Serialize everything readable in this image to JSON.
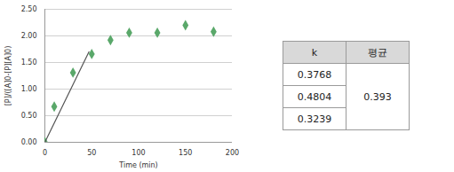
{
  "chart_data": {
    "type": "scatter",
    "xlabel": "Time (min)",
    "ylabel": "[P]/([A]0-[P][A]0)",
    "series": [
      {
        "type": "scatter",
        "marker": "diamond",
        "color": "#5aa86a",
        "x": [
          0,
          10,
          30,
          50,
          70,
          90,
          120,
          150,
          180
        ],
        "values": [
          0,
          0.67,
          1.31,
          1.66,
          1.92,
          2.06,
          2.06,
          2.2,
          2.08
        ]
      },
      {
        "type": "line",
        "line_style": "solid",
        "color": "#555555",
        "x": [
          0,
          47
        ],
        "values": [
          0,
          1.7
        ]
      }
    ],
    "xlim": [
      0,
      200
    ],
    "xticks": [
      0,
      50,
      100,
      150,
      200
    ],
    "ylim": [
      0,
      2.5
    ],
    "yticks": [
      {
        "value": 0,
        "label": "0.00"
      },
      {
        "value": 0.5,
        "label": "0.50"
      },
      {
        "value": 1,
        "label": "1.00"
      },
      {
        "value": 1.5,
        "label": "1.50"
      },
      {
        "value": 2,
        "label": "2.00"
      },
      {
        "value": 2.5,
        "label": "2.50"
      }
    ],
    "grid": true
  },
  "table": {
    "header": [
      "k",
      "평균"
    ],
    "k": [
      0.3768,
      0.4804,
      0.3239
    ],
    "average": 0.393
  }
}
